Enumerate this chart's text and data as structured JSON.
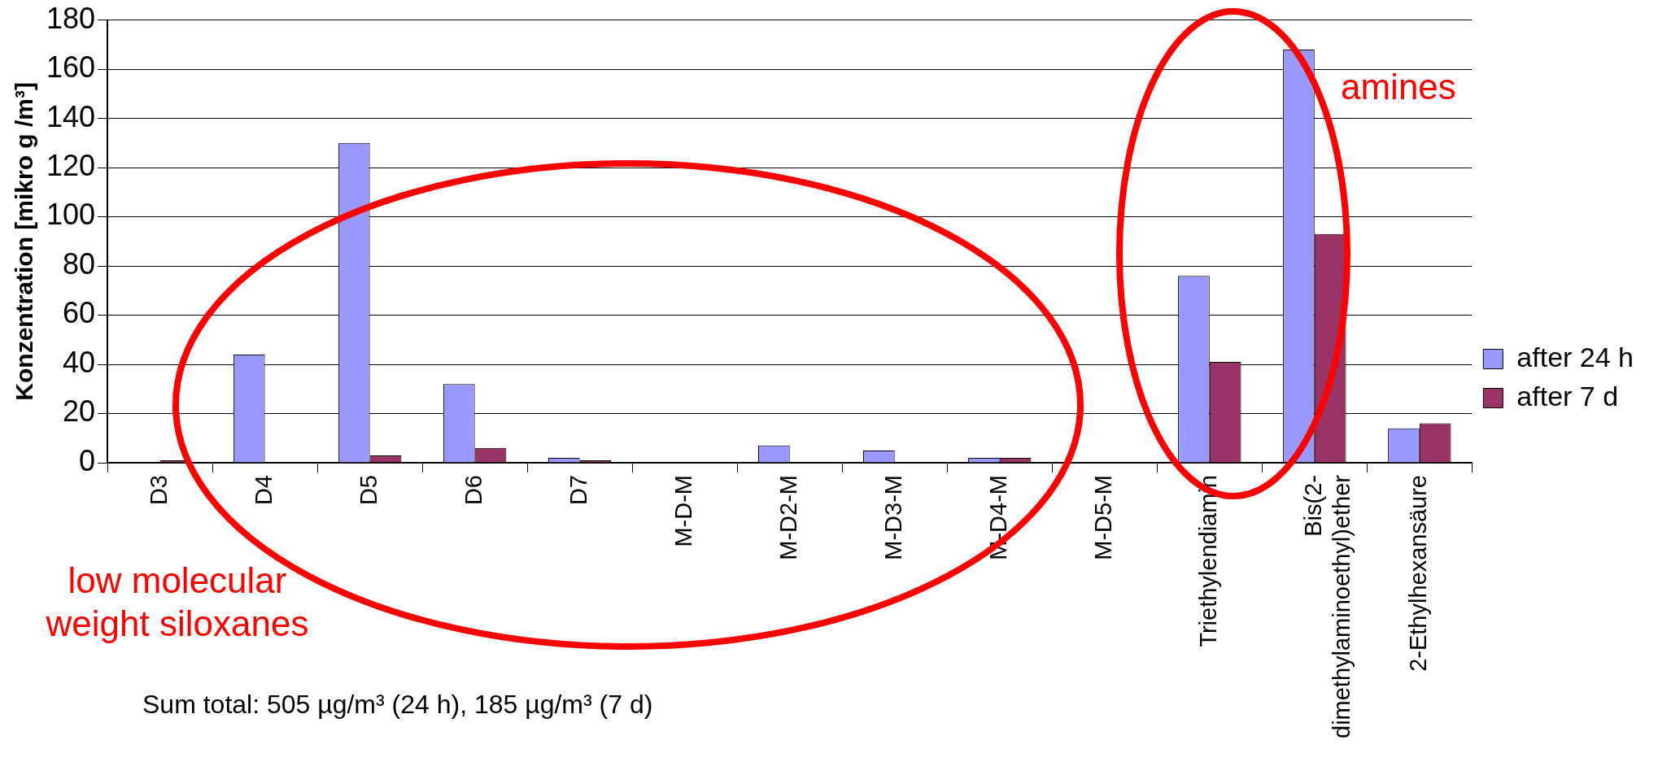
{
  "chart_data": {
    "type": "bar",
    "ylabel": "Konzentration [mikro g /m³]",
    "categories": [
      "D3",
      "D4",
      "D5",
      "D6",
      "D7",
      "M-D-M",
      "M-D2-M",
      "M-D3-M",
      "M-D4-M",
      "M-D5-M",
      "Triethylendiamin",
      "Bis(2-dimethylaminoethyl)ether",
      "2-Ethylhexansäure"
    ],
    "series": [
      {
        "name": "after 24 h",
        "color": "#9999ff",
        "values": [
          0,
          44,
          130,
          32,
          2,
          0,
          7,
          5,
          2,
          0,
          76,
          168,
          14
        ]
      },
      {
        "name": "after 7 d",
        "color": "#993366",
        "values": [
          1,
          0,
          3,
          6,
          1,
          0,
          0,
          0,
          2,
          0,
          41,
          93,
          16
        ]
      }
    ],
    "ylim": [
      0,
      180
    ],
    "yticks": [
      0,
      20,
      40,
      60,
      80,
      100,
      120,
      140,
      160,
      180
    ],
    "grid": "y",
    "legend": "right",
    "annotations": [
      "amines",
      "low molecular weight siloxanes",
      "Sum total: 505 µg/m³ (24 h), 185 µg/m³ (7 d)"
    ]
  }
}
